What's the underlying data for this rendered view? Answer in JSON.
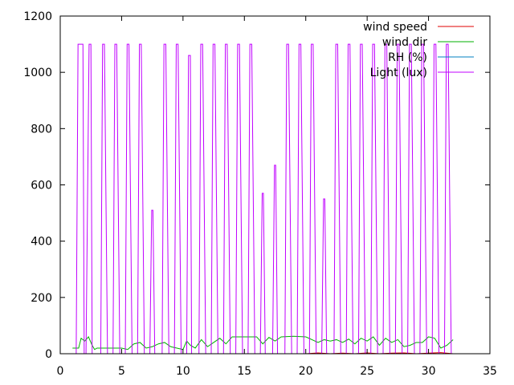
{
  "chart_data": {
    "type": "line",
    "title": "",
    "xlabel": "",
    "ylabel": "",
    "xlim": [
      0,
      35
    ],
    "ylim": [
      0,
      1200
    ],
    "x_ticks": [
      0,
      5,
      10,
      15,
      20,
      25,
      30,
      35
    ],
    "y_ticks": [
      0,
      200,
      400,
      600,
      800,
      1000,
      1200
    ],
    "grid": false,
    "legend_position": "top-right",
    "series": [
      {
        "name": "wind speed",
        "color": "#e00000",
        "x": [
          1.0,
          20.0,
          21.0,
          22.0,
          23.0,
          24.0,
          25.0,
          26.0,
          27.0,
          28.0,
          29.0,
          30.0,
          31.0,
          32.0
        ],
        "y": [
          0,
          0,
          3,
          0,
          2,
          0,
          3,
          0,
          2,
          3,
          0,
          2,
          4,
          0
        ]
      },
      {
        "name": "wind dir",
        "color": "#00b000",
        "x": [
          1.0,
          1.5,
          1.7,
          2.0,
          2.3,
          2.6,
          2.8,
          3.0,
          3.5,
          4.0,
          4.5,
          5.0,
          5.5,
          6.0,
          6.5,
          7.0,
          7.5,
          8.0,
          8.5,
          9.0,
          9.5,
          10.0,
          10.3,
          10.6,
          11.0,
          11.5,
          12.0,
          12.5,
          13.0,
          13.5,
          14.0,
          15.0,
          16.0,
          16.5,
          17.0,
          17.5,
          18.0,
          19.0,
          20.0,
          21.0,
          21.5,
          22.0,
          22.5,
          23.0,
          23.5,
          24.0,
          24.5,
          25.0,
          25.5,
          26.0,
          26.5,
          27.0,
          27.5,
          28.0,
          28.5,
          29.0,
          29.5,
          30.0,
          30.5,
          31.0,
          31.5,
          32.0
        ],
        "y": [
          20,
          20,
          55,
          45,
          60,
          30,
          15,
          20,
          20,
          20,
          20,
          20,
          15,
          35,
          40,
          20,
          25,
          35,
          40,
          25,
          20,
          15,
          45,
          30,
          20,
          50,
          25,
          40,
          55,
          35,
          60,
          60,
          60,
          35,
          58,
          45,
          60,
          62,
          60,
          40,
          50,
          45,
          50,
          40,
          52,
          35,
          55,
          45,
          60,
          30,
          55,
          40,
          50,
          25,
          30,
          40,
          40,
          60,
          55,
          20,
          30,
          50
        ]
      },
      {
        "name": "RH (%)",
        "color": "#0080c0",
        "x": [],
        "y": []
      },
      {
        "name": "Light (lux)",
        "color": "#c000ff",
        "x": [
          1.0,
          1.3,
          1.45,
          1.6,
          1.85,
          1.95,
          2.1,
          2.35,
          2.5,
          2.6,
          3.3,
          3.45,
          3.6,
          3.85,
          3.95,
          4.3,
          4.45,
          4.6,
          4.85,
          4.95,
          5.3,
          5.45,
          5.6,
          5.85,
          5.95,
          6.3,
          6.45,
          6.6,
          6.85,
          6.95,
          7.3,
          7.45,
          7.55,
          7.7,
          8.3,
          8.45,
          8.6,
          8.85,
          8.95,
          9.3,
          9.45,
          9.6,
          9.85,
          9.95,
          10.3,
          10.45,
          10.6,
          10.7,
          11.3,
          11.45,
          11.6,
          11.85,
          11.95,
          12.3,
          12.45,
          12.6,
          12.85,
          12.95,
          13.3,
          13.45,
          13.6,
          13.85,
          13.95,
          14.3,
          14.45,
          14.6,
          14.85,
          14.95,
          15.3,
          15.45,
          15.6,
          15.85,
          15.95,
          16.3,
          16.45,
          16.55,
          16.7,
          17.3,
          17.45,
          17.55,
          17.7,
          18.3,
          18.45,
          18.6,
          18.85,
          18.95,
          19.3,
          19.45,
          19.6,
          19.85,
          19.95,
          20.3,
          20.45,
          20.6,
          20.85,
          20.95,
          21.3,
          21.45,
          21.55,
          21.7,
          22.3,
          22.45,
          22.6,
          22.85,
          22.95,
          23.3,
          23.45,
          23.6,
          23.85,
          23.95,
          24.3,
          24.45,
          24.6,
          24.85,
          24.95,
          25.3,
          25.45,
          25.6,
          25.85,
          25.95,
          26.3,
          26.45,
          26.6,
          26.85,
          26.95,
          27.3,
          27.45,
          27.6,
          27.85,
          27.95,
          28.3,
          28.45,
          28.6,
          28.85,
          28.95,
          29.3,
          29.45,
          29.6,
          29.85,
          29.95,
          30.3,
          30.45,
          30.6,
          30.85,
          30.95,
          31.3,
          31.45,
          31.6,
          31.85,
          32.0
        ],
        "y": [
          0,
          0,
          1100,
          1100,
          1100,
          0,
          0,
          1100,
          1100,
          0,
          0,
          1100,
          1100,
          0,
          0,
          0,
          1100,
          1100,
          0,
          0,
          0,
          1100,
          1100,
          0,
          0,
          0,
          1100,
          1100,
          0,
          0,
          0,
          510,
          510,
          0,
          0,
          1100,
          1100,
          0,
          0,
          0,
          1100,
          1100,
          0,
          0,
          0,
          1060,
          1060,
          0,
          0,
          1100,
          1100,
          0,
          0,
          0,
          1100,
          1100,
          0,
          0,
          0,
          1100,
          1100,
          0,
          0,
          0,
          1100,
          1100,
          0,
          0,
          0,
          1100,
          1100,
          0,
          0,
          0,
          570,
          570,
          0,
          0,
          670,
          670,
          0,
          0,
          1100,
          1100,
          0,
          0,
          0,
          1100,
          1100,
          0,
          0,
          0,
          1100,
          1100,
          0,
          0,
          0,
          550,
          550,
          0,
          0,
          1100,
          1100,
          0,
          0,
          0,
          1100,
          1100,
          0,
          0,
          0,
          1100,
          1100,
          0,
          0,
          0,
          1100,
          1100,
          0,
          0,
          0,
          1100,
          1100,
          0,
          0,
          0,
          1100,
          1100,
          0,
          0,
          0,
          1100,
          1100,
          0,
          0,
          0,
          1100,
          1100,
          0,
          0,
          0,
          1100,
          1100,
          0,
          0,
          0,
          1100,
          1100,
          0,
          0
        ]
      }
    ]
  }
}
